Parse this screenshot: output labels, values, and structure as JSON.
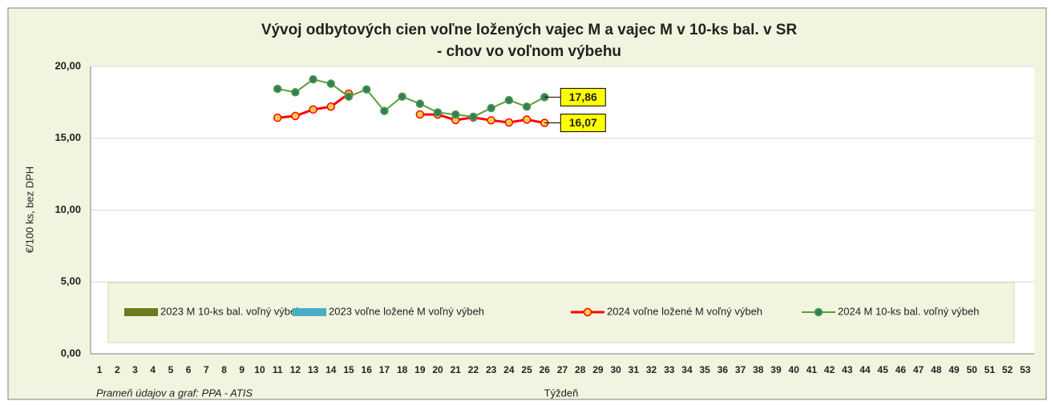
{
  "chart_data": {
    "type": "line",
    "title": "Vývoj odbytových cien voľne ložených vajec M a vajec M v 10-ks bal. v SR",
    "subtitle": "- chov vo voľnom výbehu",
    "y_label": "€/100 ks, bez DPH",
    "x_label": "Týždeň",
    "source": "Prameň údajov a graf: PPA - ATIS",
    "categories": [
      "1",
      "2",
      "3",
      "4",
      "5",
      "6",
      "7",
      "8",
      "9",
      "10",
      "11",
      "12",
      "13",
      "14",
      "15",
      "16",
      "17",
      "18",
      "19",
      "20",
      "21",
      "22",
      "23",
      "24",
      "25",
      "26",
      "27",
      "28",
      "29",
      "30",
      "31",
      "32",
      "33",
      "34",
      "35",
      "36",
      "37",
      "38",
      "39",
      "40",
      "41",
      "42",
      "43",
      "44",
      "45",
      "46",
      "47",
      "48",
      "49",
      "50",
      "51",
      "52",
      "53"
    ],
    "ylim": [
      0,
      20
    ],
    "yticks": [
      {
        "value": 0,
        "label": "0,00"
      },
      {
        "value": 5,
        "label": "5,00"
      },
      {
        "value": 10,
        "label": "10,00"
      },
      {
        "value": 15,
        "label": "15,00"
      },
      {
        "value": 20,
        "label": "20,00"
      }
    ],
    "grid": true,
    "legend": "bottom",
    "series": [
      {
        "name": "2023 M 10-ks bal. voľný výbeh",
        "color": "#6b7a1e",
        "kind": "bar",
        "values": [
          null,
          null,
          null,
          null,
          null,
          null,
          null,
          null,
          null,
          null,
          null,
          null,
          null,
          null,
          null,
          null,
          null,
          null,
          null,
          null,
          null,
          null,
          null,
          null,
          null,
          null,
          null,
          null,
          null,
          null,
          null,
          null,
          null,
          null,
          null,
          null,
          null,
          null,
          null,
          null,
          null,
          null,
          null,
          null,
          null,
          null,
          null,
          null,
          null,
          null,
          null,
          null,
          null
        ]
      },
      {
        "name": "2023 voľne ložené M voľný výbeh",
        "color": "#4bacc6",
        "kind": "bar",
        "values": [
          null,
          null,
          null,
          null,
          null,
          null,
          null,
          null,
          null,
          null,
          null,
          null,
          null,
          null,
          null,
          null,
          null,
          null,
          null,
          null,
          null,
          null,
          null,
          null,
          null,
          null,
          null,
          null,
          null,
          null,
          null,
          null,
          null,
          null,
          null,
          null,
          null,
          null,
          null,
          null,
          null,
          null,
          null,
          null,
          null,
          null,
          null,
          null,
          null,
          null,
          null,
          null,
          null
        ]
      },
      {
        "name": "2024 voľne ložené M voľný výbeh",
        "color": "#ff0000",
        "marker_color": "#f2cf4a",
        "kind": "line",
        "values": [
          null,
          null,
          null,
          null,
          null,
          null,
          null,
          null,
          null,
          null,
          16.43,
          16.55,
          17.0,
          17.2,
          18.1,
          null,
          null,
          null,
          16.66,
          16.65,
          16.27,
          16.45,
          16.25,
          16.1,
          16.3,
          16.07,
          null,
          null,
          null,
          null,
          null,
          null,
          null,
          null,
          null,
          null,
          null,
          null,
          null,
          null,
          null,
          null,
          null,
          null,
          null,
          null,
          null,
          null,
          null,
          null,
          null,
          null,
          null
        ],
        "end_label": "16,07"
      },
      {
        "name": "2024 M 10-ks bal. voľný výbeh",
        "color": "#5a9e3a",
        "marker_color": "#2e7d6a",
        "kind": "line",
        "values": [
          null,
          null,
          null,
          null,
          null,
          null,
          null,
          null,
          null,
          null,
          18.44,
          18.2,
          19.1,
          18.8,
          17.9,
          18.4,
          16.9,
          17.9,
          17.4,
          16.8,
          16.65,
          16.5,
          17.1,
          17.65,
          17.2,
          17.86,
          null,
          null,
          null,
          null,
          null,
          null,
          null,
          null,
          null,
          null,
          null,
          null,
          null,
          null,
          null,
          null,
          null,
          null,
          null,
          null,
          null,
          null,
          null,
          null,
          null,
          null,
          null
        ],
        "end_label": "17,86"
      }
    ]
  }
}
